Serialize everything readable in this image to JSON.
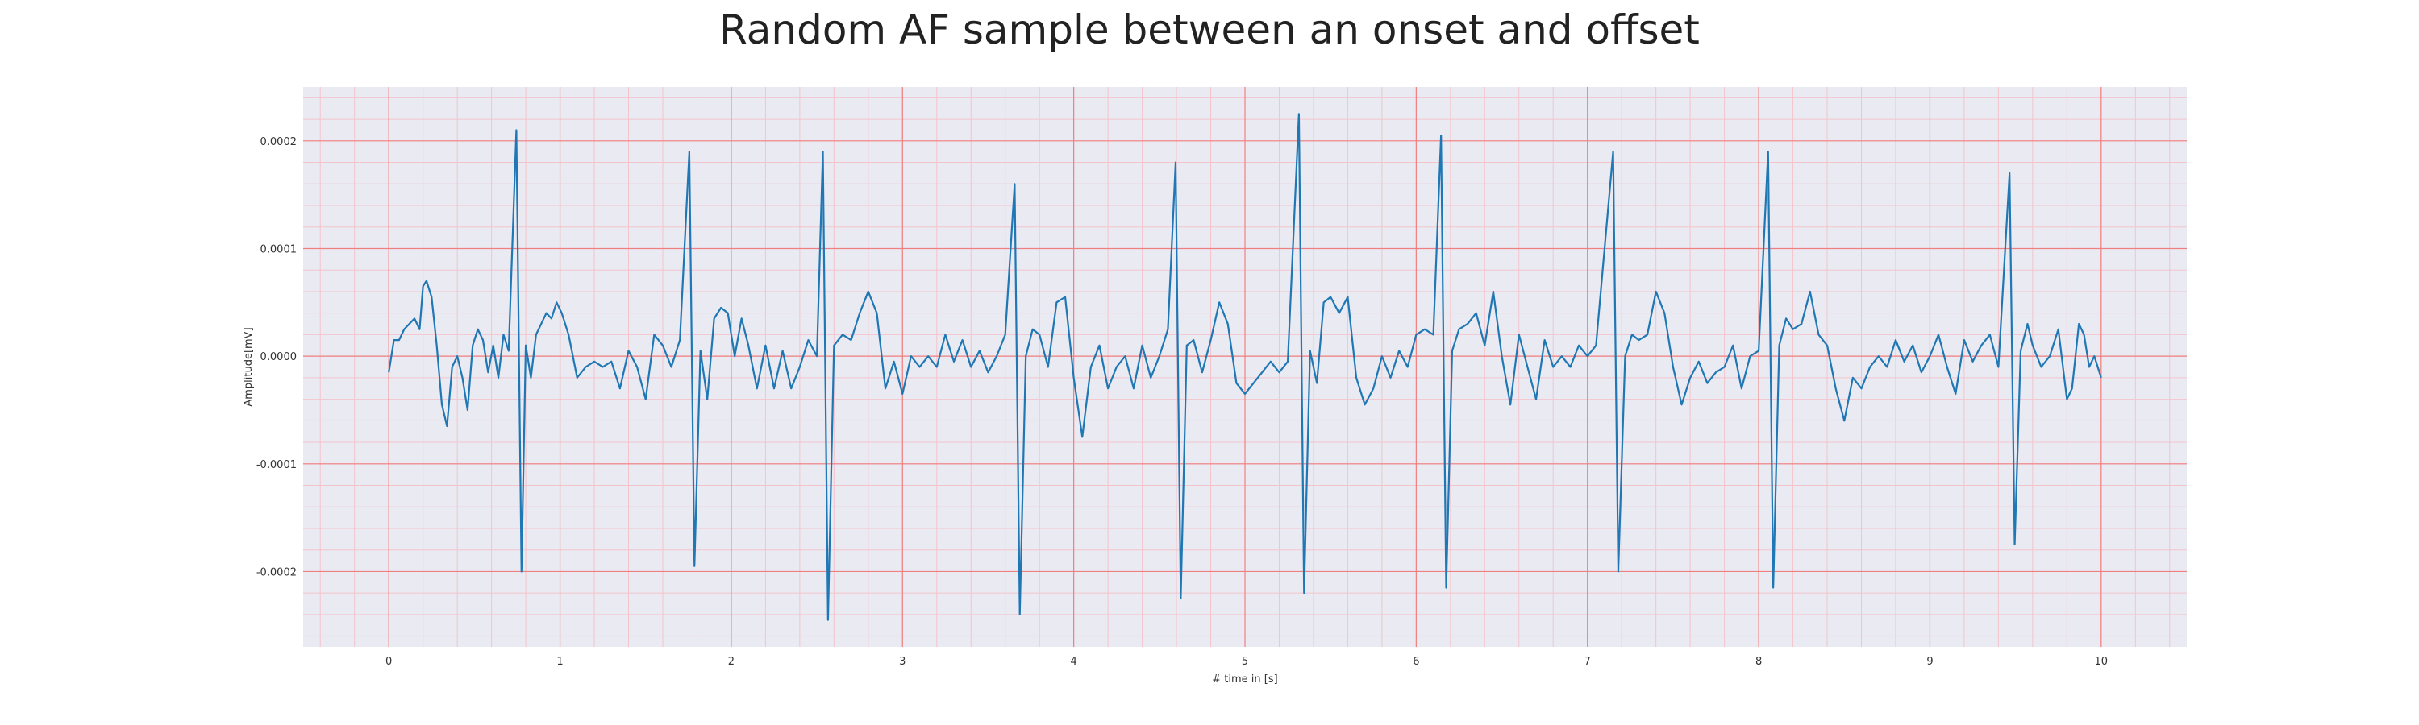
{
  "chart_data": {
    "type": "line",
    "title": "Random AF sample between an onset and offset",
    "xlabel": "# time in [s]",
    "ylabel": "Amplitude[mV]",
    "xlim": [
      -0.5,
      10.5
    ],
    "ylim": [
      -0.00027,
      0.00025
    ],
    "x_ticks": [
      0,
      1,
      2,
      3,
      4,
      5,
      6,
      7,
      8,
      9,
      10
    ],
    "x_tick_labels": [
      "0",
      "1",
      "2",
      "3",
      "4",
      "5",
      "6",
      "7",
      "8",
      "9",
      "10"
    ],
    "y_ticks": [
      0.0002,
      0.0001,
      0.0,
      -0.0001,
      -0.0002
    ],
    "y_tick_labels": [
      "0.0002",
      "0.0001",
      "0.0000",
      "-0.0001",
      "-0.0002"
    ],
    "grid": true,
    "minor_grid": true,
    "colors": {
      "line": "#1f77b4",
      "background": "#eaeaf2",
      "major_grid": "#f08080",
      "minor_grid": "#f4c4cc"
    },
    "series": [
      {
        "values": [
          [
            0.0,
            -1.5e-05
          ],
          [
            0.03,
            1.5e-05
          ],
          [
            0.06,
            1.5e-05
          ],
          [
            0.09,
            2.5e-05
          ],
          [
            0.12,
            3e-05
          ],
          [
            0.15,
            3.5e-05
          ],
          [
            0.18,
            2.5e-05
          ],
          [
            0.2,
            6.5e-05
          ],
          [
            0.22,
            7e-05
          ],
          [
            0.25,
            5.5e-05
          ],
          [
            0.28,
            1e-05
          ],
          [
            0.31,
            -4.5e-05
          ],
          [
            0.34,
            -6.5e-05
          ],
          [
            0.37,
            -1e-05
          ],
          [
            0.4,
            0.0
          ],
          [
            0.43,
            -2e-05
          ],
          [
            0.46,
            -5e-05
          ],
          [
            0.49,
            1e-05
          ],
          [
            0.52,
            2.5e-05
          ],
          [
            0.55,
            1.5e-05
          ],
          [
            0.58,
            -1.5e-05
          ],
          [
            0.61,
            1e-05
          ],
          [
            0.64,
            -2e-05
          ],
          [
            0.67,
            2e-05
          ],
          [
            0.7,
            5e-06
          ],
          [
            0.745,
            0.00021
          ],
          [
            0.775,
            -0.0002
          ],
          [
            0.8,
            1e-05
          ],
          [
            0.83,
            -2e-05
          ],
          [
            0.86,
            2e-05
          ],
          [
            0.89,
            3e-05
          ],
          [
            0.92,
            4e-05
          ],
          [
            0.95,
            3.5e-05
          ],
          [
            0.98,
            5e-05
          ],
          [
            1.01,
            4e-05
          ],
          [
            1.05,
            2e-05
          ],
          [
            1.1,
            -2e-05
          ],
          [
            1.15,
            -1e-05
          ],
          [
            1.2,
            -5e-06
          ],
          [
            1.25,
            -1e-05
          ],
          [
            1.3,
            -5e-06
          ],
          [
            1.35,
            -3e-05
          ],
          [
            1.4,
            5e-06
          ],
          [
            1.45,
            -1e-05
          ],
          [
            1.5,
            -4e-05
          ],
          [
            1.55,
            2e-05
          ],
          [
            1.6,
            1e-05
          ],
          [
            1.65,
            -1e-05
          ],
          [
            1.7,
            1.5e-05
          ],
          [
            1.755,
            0.00019
          ],
          [
            1.785,
            -0.000195
          ],
          [
            1.82,
            5e-06
          ],
          [
            1.86,
            -4e-05
          ],
          [
            1.9,
            3.5e-05
          ],
          [
            1.94,
            4.5e-05
          ],
          [
            1.98,
            4e-05
          ],
          [
            2.02,
            0.0
          ],
          [
            2.06,
            3.5e-05
          ],
          [
            2.1,
            1e-05
          ],
          [
            2.15,
            -3e-05
          ],
          [
            2.2,
            1e-05
          ],
          [
            2.25,
            -3e-05
          ],
          [
            2.3,
            5e-06
          ],
          [
            2.35,
            -3e-05
          ],
          [
            2.4,
            -1e-05
          ],
          [
            2.45,
            1.5e-05
          ],
          [
            2.5,
            0.0
          ],
          [
            2.535,
            0.00019
          ],
          [
            2.565,
            -0.000245
          ],
          [
            2.6,
            1e-05
          ],
          [
            2.65,
            2e-05
          ],
          [
            2.7,
            1.5e-05
          ],
          [
            2.75,
            4e-05
          ],
          [
            2.8,
            6e-05
          ],
          [
            2.85,
            4e-05
          ],
          [
            2.9,
            -3e-05
          ],
          [
            2.95,
            -5e-06
          ],
          [
            3.0,
            -3.5e-05
          ],
          [
            3.05,
            0.0
          ],
          [
            3.1,
            -1e-05
          ],
          [
            3.15,
            0.0
          ],
          [
            3.2,
            -1e-05
          ],
          [
            3.25,
            2e-05
          ],
          [
            3.3,
            -5e-06
          ],
          [
            3.35,
            1.5e-05
          ],
          [
            3.4,
            -1e-05
          ],
          [
            3.45,
            5e-06
          ],
          [
            3.5,
            -1.5e-05
          ],
          [
            3.55,
            0.0
          ],
          [
            3.6,
            2e-05
          ],
          [
            3.655,
            0.00016
          ],
          [
            3.685,
            -0.00024
          ],
          [
            3.72,
            0.0
          ],
          [
            3.76,
            2.5e-05
          ],
          [
            3.8,
            2e-05
          ],
          [
            3.85,
            -1e-05
          ],
          [
            3.9,
            5e-05
          ],
          [
            3.95,
            5.5e-05
          ],
          [
            4.0,
            -2e-05
          ],
          [
            4.05,
            -7.5e-05
          ],
          [
            4.1,
            -1e-05
          ],
          [
            4.15,
            1e-05
          ],
          [
            4.2,
            -3e-05
          ],
          [
            4.25,
            -1e-05
          ],
          [
            4.3,
            0.0
          ],
          [
            4.35,
            -3e-05
          ],
          [
            4.4,
            1e-05
          ],
          [
            4.45,
            -2e-05
          ],
          [
            4.5,
            0.0
          ],
          [
            4.55,
            2.5e-05
          ],
          [
            4.595,
            0.00018
          ],
          [
            4.625,
            -0.000225
          ],
          [
            4.66,
            1e-05
          ],
          [
            4.7,
            1.5e-05
          ],
          [
            4.75,
            -1.5e-05
          ],
          [
            4.8,
            1.5e-05
          ],
          [
            4.85,
            5e-05
          ],
          [
            4.9,
            3e-05
          ],
          [
            4.95,
            -2.5e-05
          ],
          [
            5.0,
            -3.5e-05
          ],
          [
            5.05,
            -2.5e-05
          ],
          [
            5.1,
            -1.5e-05
          ],
          [
            5.15,
            -5e-06
          ],
          [
            5.2,
            -1.5e-05
          ],
          [
            5.25,
            -5e-06
          ],
          [
            5.315,
            0.000225
          ],
          [
            5.345,
            -0.00022
          ],
          [
            5.38,
            5e-06
          ],
          [
            5.42,
            -2.5e-05
          ],
          [
            5.46,
            5e-05
          ],
          [
            5.5,
            5.5e-05
          ],
          [
            5.55,
            4e-05
          ],
          [
            5.6,
            5.5e-05
          ],
          [
            5.65,
            -2e-05
          ],
          [
            5.7,
            -4.5e-05
          ],
          [
            5.75,
            -3e-05
          ],
          [
            5.8,
            0.0
          ],
          [
            5.85,
            -2e-05
          ],
          [
            5.9,
            5e-06
          ],
          [
            5.95,
            -1e-05
          ],
          [
            6.0,
            2e-05
          ],
          [
            6.05,
            2.5e-05
          ],
          [
            6.1,
            2e-05
          ],
          [
            6.145,
            0.000205
          ],
          [
            6.175,
            -0.000215
          ],
          [
            6.21,
            5e-06
          ],
          [
            6.25,
            2.5e-05
          ],
          [
            6.3,
            3e-05
          ],
          [
            6.35,
            4e-05
          ],
          [
            6.4,
            1e-05
          ],
          [
            6.45,
            6e-05
          ],
          [
            6.5,
            0.0
          ],
          [
            6.55,
            -4.5e-05
          ],
          [
            6.6,
            2e-05
          ],
          [
            6.65,
            -1e-05
          ],
          [
            6.7,
            -4e-05
          ],
          [
            6.75,
            1.5e-05
          ],
          [
            6.8,
            -1e-05
          ],
          [
            6.85,
            0.0
          ],
          [
            6.9,
            -1e-05
          ],
          [
            6.95,
            1e-05
          ],
          [
            7.0,
            0.0
          ],
          [
            7.05,
            1e-05
          ],
          [
            7.15,
            0.00019
          ],
          [
            7.18,
            -0.0002
          ],
          [
            7.22,
            0.0
          ],
          [
            7.26,
            2e-05
          ],
          [
            7.3,
            1.5e-05
          ],
          [
            7.35,
            2e-05
          ],
          [
            7.4,
            6e-05
          ],
          [
            7.45,
            4e-05
          ],
          [
            7.5,
            -1e-05
          ],
          [
            7.55,
            -4.5e-05
          ],
          [
            7.6,
            -2e-05
          ],
          [
            7.65,
            -5e-06
          ],
          [
            7.7,
            -2.5e-05
          ],
          [
            7.75,
            -1.5e-05
          ],
          [
            7.8,
            -1e-05
          ],
          [
            7.85,
            1e-05
          ],
          [
            7.9,
            -3e-05
          ],
          [
            7.95,
            0.0
          ],
          [
            8.0,
            5e-06
          ],
          [
            8.055,
            0.00019
          ],
          [
            8.085,
            -0.000215
          ],
          [
            8.12,
            1e-05
          ],
          [
            8.16,
            3.5e-05
          ],
          [
            8.2,
            2.5e-05
          ],
          [
            8.25,
            3e-05
          ],
          [
            8.3,
            6e-05
          ],
          [
            8.35,
            2e-05
          ],
          [
            8.4,
            1e-05
          ],
          [
            8.45,
            -3e-05
          ],
          [
            8.5,
            -6e-05
          ],
          [
            8.55,
            -2e-05
          ],
          [
            8.6,
            -3e-05
          ],
          [
            8.65,
            -1e-05
          ],
          [
            8.7,
            0.0
          ],
          [
            8.75,
            -1e-05
          ],
          [
            8.8,
            1.5e-05
          ],
          [
            8.85,
            -5e-06
          ],
          [
            8.9,
            1e-05
          ],
          [
            8.95,
            -1.5e-05
          ],
          [
            9.0,
            0.0
          ],
          [
            9.05,
            2e-05
          ],
          [
            9.1,
            -1e-05
          ],
          [
            9.15,
            -3.5e-05
          ],
          [
            9.2,
            1.5e-05
          ],
          [
            9.25,
            -5e-06
          ],
          [
            9.3,
            1e-05
          ],
          [
            9.35,
            2e-05
          ],
          [
            9.4,
            -1e-05
          ],
          [
            9.465,
            0.00017
          ],
          [
            9.495,
            -0.000175
          ],
          [
            9.53,
            5e-06
          ],
          [
            9.57,
            3e-05
          ],
          [
            9.6,
            1e-05
          ],
          [
            9.65,
            -1e-05
          ],
          [
            9.7,
            0.0
          ],
          [
            9.75,
            2.5e-05
          ],
          [
            9.8,
            -4e-05
          ],
          [
            9.83,
            -3e-05
          ],
          [
            9.87,
            3e-05
          ],
          [
            9.9,
            2e-05
          ],
          [
            9.93,
            -1e-05
          ],
          [
            9.96,
            0.0
          ],
          [
            10.0,
            -2e-05
          ]
        ]
      }
    ]
  }
}
